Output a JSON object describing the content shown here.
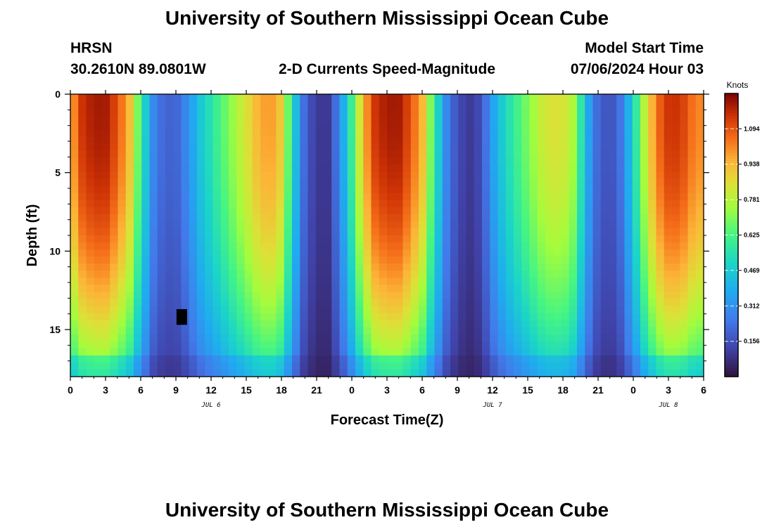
{
  "header": {
    "title": "University of Southern Mississippi Ocean Cube",
    "station": "HRSN",
    "location": "30.2610N  89.0801W",
    "subtitle": "2-D Currents Speed-Magnitude",
    "model_start_label": "Model Start Time",
    "model_start_value": "07/06/2024 Hour 03"
  },
  "footer": {
    "title": "University of Southern Mississippi Ocean Cube"
  },
  "chart_data": {
    "type": "heatmap",
    "title": "2-D Currents Speed-Magnitude",
    "xlabel": "Forecast Time(Z)",
    "ylabel": "Depth (ft)",
    "xlim": [
      0,
      54
    ],
    "ylim": [
      0,
      18
    ],
    "x_tick_values": [
      0,
      3,
      6,
      9,
      12,
      15,
      18,
      21,
      24,
      27,
      30,
      33,
      36,
      39,
      42,
      45,
      48,
      51,
      54
    ],
    "x_tick_labels": [
      "0",
      "3",
      "6",
      "9",
      "12",
      "15",
      "18",
      "21",
      "0",
      "3",
      "6",
      "9",
      "12",
      "15",
      "18",
      "21",
      "0",
      "3",
      "6"
    ],
    "y_tick_values": [
      0,
      5,
      10,
      15
    ],
    "y_tick_labels": [
      "0",
      "5",
      "10",
      "15"
    ],
    "date_labels": [
      {
        "text": "JUL 6",
        "x": 12
      },
      {
        "text": "JUL 7",
        "x": 36
      },
      {
        "text": "JUL 8",
        "x": 51
      }
    ],
    "colorbar": {
      "label": "Knots",
      "min": 0.0,
      "max": 1.25,
      "ticks": [
        0.156,
        0.312,
        0.469,
        0.625,
        0.781,
        0.938,
        1.094
      ]
    },
    "surface_speed_knots": [
      0.95,
      1.15,
      1.2,
      1.2,
      1.1,
      0.95,
      0.6,
      0.3,
      0.2,
      0.2,
      0.3,
      0.45,
      0.55,
      0.65,
      0.75,
      0.85,
      0.95,
      1.0,
      0.9,
      0.5,
      0.2,
      0.1,
      0.1,
      0.3,
      0.6,
      0.95,
      1.15,
      1.2,
      1.2,
      1.1,
      0.95,
      0.6,
      0.3,
      0.15,
      0.1,
      0.15,
      0.35,
      0.5,
      0.6,
      0.7,
      0.8,
      0.85,
      0.85,
      0.75,
      0.4,
      0.2,
      0.15,
      0.25,
      0.5,
      0.8,
      1.05,
      1.15,
      1.15,
      1.05,
      1.0
    ],
    "surface_speed_times_h": "0 to 54 every 1 h",
    "bottom_speed_factor": 0.55,
    "missing_cell": {
      "time_h": 9.5,
      "depth_ft": 14.2
    }
  }
}
